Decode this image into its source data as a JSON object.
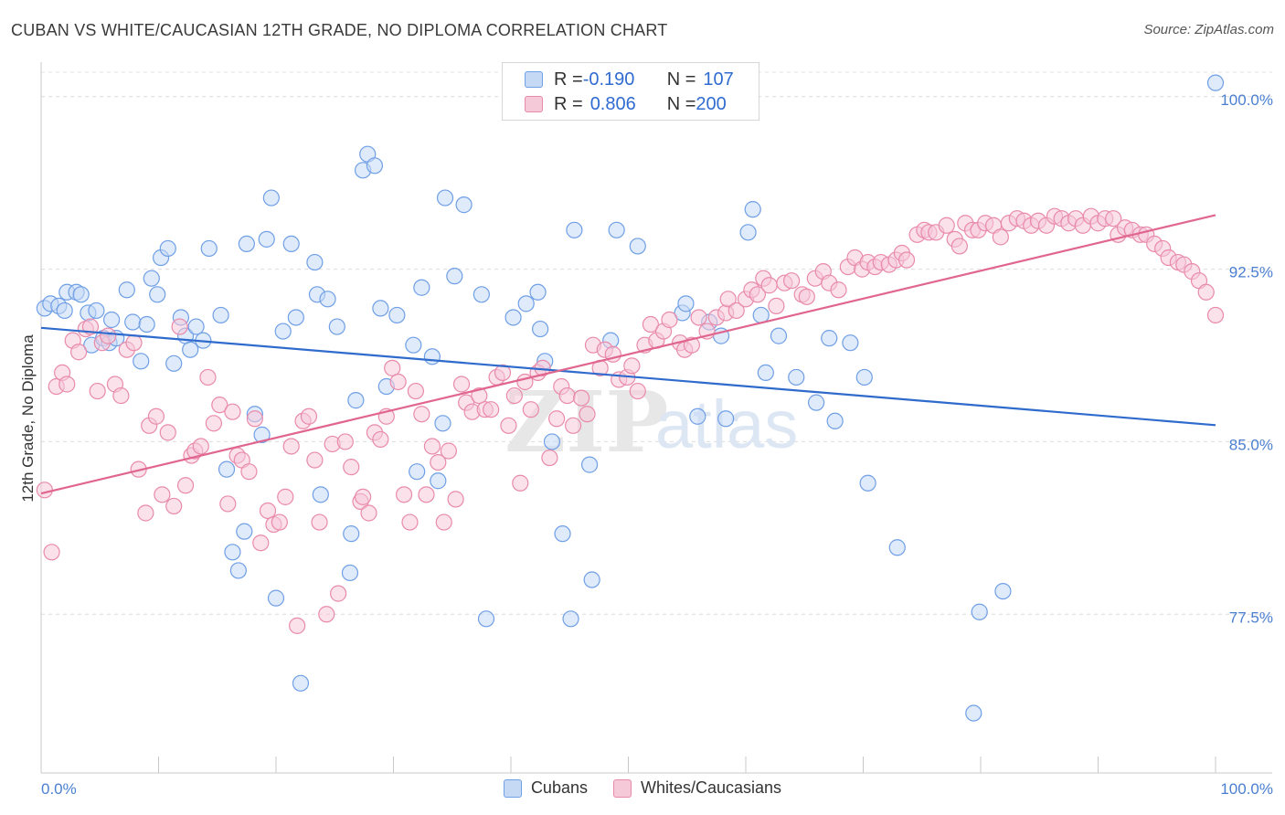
{
  "title": "CUBAN VS WHITE/CAUCASIAN 12TH GRADE, NO DIPLOMA CORRELATION CHART",
  "source": "Source: ZipAtlas.com",
  "watermark": {
    "zip": "ZIP",
    "atlas": "atlas"
  },
  "colors": {
    "blue": "#6f9fe6",
    "blue_fill": "#c5d9f5",
    "blue_line": "#2f6bcc",
    "pink": "#e98aab",
    "pink_fill": "#f6c9d8",
    "pink_line": "#e0668f",
    "tick": "#4a7fd1"
  },
  "legend": {
    "rows": [
      {
        "r_label": "R = ",
        "r_value": "-0.190",
        "n_label": "N = ",
        "n_value": "107"
      },
      {
        "r_label": "R = ",
        "r_value": "0.806",
        "n_label": "N = ",
        "n_value": "200"
      }
    ]
  },
  "bottom_legend": [
    "Cubans",
    "Whites/Caucasians"
  ],
  "chart_data": {
    "type": "scatter",
    "title": "CUBAN VS WHITE/CAUCASIAN 12TH GRADE, NO DIPLOMA CORRELATION CHART",
    "xlabel": "",
    "ylabel": "12th Grade, No Diploma",
    "xlim": [
      0,
      100
    ],
    "ylim": [
      70.6,
      101.5
    ],
    "x_tick_labels": [
      "0.0%",
      "100.0%"
    ],
    "y_ticks": [
      77.5,
      85.0,
      92.5,
      100.0
    ],
    "y_tick_labels": [
      "77.5%",
      "85.0%",
      "92.5%",
      "100.0%"
    ],
    "grid": true,
    "series": [
      {
        "name": "Cubans",
        "r": -0.19,
        "n": 107,
        "trend": {
          "x": [
            0,
            100
          ],
          "y": [
            89.95,
            85.72
          ]
        },
        "points": [
          [
            0.3,
            90.8
          ],
          [
            0.8,
            91.0
          ],
          [
            1.5,
            90.9
          ],
          [
            2.0,
            90.7
          ],
          [
            2.2,
            91.5
          ],
          [
            3.0,
            91.5
          ],
          [
            3.4,
            91.4
          ],
          [
            4.0,
            90.6
          ],
          [
            4.3,
            89.2
          ],
          [
            4.7,
            90.7
          ],
          [
            5.3,
            89.5
          ],
          [
            5.8,
            89.3
          ],
          [
            6.0,
            90.3
          ],
          [
            6.4,
            89.5
          ],
          [
            7.3,
            91.6
          ],
          [
            7.8,
            90.2
          ],
          [
            8.5,
            88.5
          ],
          [
            9.0,
            90.1
          ],
          [
            9.4,
            92.1
          ],
          [
            9.9,
            91.4
          ],
          [
            10.2,
            93.0
          ],
          [
            10.8,
            93.4
          ],
          [
            11.3,
            88.4
          ],
          [
            11.9,
            90.4
          ],
          [
            12.3,
            89.6
          ],
          [
            12.7,
            89.0
          ],
          [
            13.2,
            90.0
          ],
          [
            13.8,
            89.4
          ],
          [
            14.3,
            93.4
          ],
          [
            15.3,
            90.5
          ],
          [
            15.8,
            83.8
          ],
          [
            16.3,
            80.2
          ],
          [
            16.8,
            79.4
          ],
          [
            17.3,
            81.1
          ],
          [
            17.5,
            93.6
          ],
          [
            18.2,
            86.2
          ],
          [
            18.8,
            85.3
          ],
          [
            19.2,
            93.8
          ],
          [
            19.6,
            95.6
          ],
          [
            20.0,
            78.2
          ],
          [
            20.6,
            89.8
          ],
          [
            21.3,
            93.6
          ],
          [
            21.7,
            90.4
          ],
          [
            22.1,
            74.5
          ],
          [
            23.3,
            92.8
          ],
          [
            23.5,
            91.4
          ],
          [
            23.8,
            82.7
          ],
          [
            24.4,
            91.2
          ],
          [
            25.2,
            90.0
          ],
          [
            26.3,
            79.3
          ],
          [
            26.4,
            81.0
          ],
          [
            26.8,
            86.8
          ],
          [
            27.4,
            96.8
          ],
          [
            27.8,
            97.5
          ],
          [
            28.4,
            97.0
          ],
          [
            28.9,
            90.8
          ],
          [
            29.4,
            87.4
          ],
          [
            30.3,
            90.5
          ],
          [
            31.7,
            89.2
          ],
          [
            32.0,
            83.7
          ],
          [
            32.4,
            91.7
          ],
          [
            33.3,
            88.7
          ],
          [
            33.8,
            83.3
          ],
          [
            34.2,
            85.8
          ],
          [
            34.4,
            95.6
          ],
          [
            35.2,
            92.2
          ],
          [
            36.0,
            95.3
          ],
          [
            37.5,
            91.4
          ],
          [
            37.9,
            77.3
          ],
          [
            40.2,
            90.4
          ],
          [
            41.3,
            91.0
          ],
          [
            42.3,
            91.5
          ],
          [
            42.5,
            89.9
          ],
          [
            42.9,
            88.5
          ],
          [
            43.5,
            85.0
          ],
          [
            44.4,
            81.0
          ],
          [
            45.1,
            77.3
          ],
          [
            45.4,
            94.2
          ],
          [
            46.7,
            84.0
          ],
          [
            46.9,
            79.0
          ],
          [
            48.5,
            89.4
          ],
          [
            49.0,
            94.2
          ],
          [
            50.8,
            93.5
          ],
          [
            54.6,
            90.6
          ],
          [
            54.9,
            91.0
          ],
          [
            55.9,
            86.1
          ],
          [
            56.9,
            90.2
          ],
          [
            57.9,
            89.6
          ],
          [
            58.3,
            86.0
          ],
          [
            60.2,
            94.1
          ],
          [
            60.6,
            95.1
          ],
          [
            61.3,
            90.5
          ],
          [
            61.7,
            88.0
          ],
          [
            62.8,
            89.6
          ],
          [
            64.3,
            87.8
          ],
          [
            66.0,
            86.7
          ],
          [
            67.1,
            89.5
          ],
          [
            67.6,
            85.9
          ],
          [
            68.9,
            89.3
          ],
          [
            70.1,
            87.8
          ],
          [
            70.4,
            83.2
          ],
          [
            72.9,
            80.4
          ],
          [
            79.4,
            73.2
          ],
          [
            79.9,
            77.6
          ],
          [
            81.9,
            78.5
          ],
          [
            100.0,
            100.6
          ]
        ]
      },
      {
        "name": "Whites/Caucasians",
        "r": 0.806,
        "n": 200,
        "trend": {
          "x": [
            0,
            100
          ],
          "y": [
            82.75,
            94.85
          ]
        },
        "points": [
          [
            0.3,
            82.9
          ],
          [
            0.9,
            80.2
          ],
          [
            1.3,
            87.4
          ],
          [
            1.8,
            88.0
          ],
          [
            2.2,
            87.5
          ],
          [
            2.7,
            89.4
          ],
          [
            3.2,
            88.9
          ],
          [
            3.8,
            89.9
          ],
          [
            4.2,
            90.0
          ],
          [
            4.8,
            87.2
          ],
          [
            5.2,
            89.3
          ],
          [
            5.7,
            89.6
          ],
          [
            6.3,
            87.5
          ],
          [
            6.8,
            87.0
          ],
          [
            7.3,
            89.0
          ],
          [
            7.9,
            89.3
          ],
          [
            8.3,
            83.8
          ],
          [
            8.9,
            81.9
          ],
          [
            9.2,
            85.7
          ],
          [
            9.8,
            86.1
          ],
          [
            10.3,
            82.7
          ],
          [
            10.8,
            85.4
          ],
          [
            11.3,
            82.2
          ],
          [
            11.8,
            90.0
          ],
          [
            12.3,
            83.1
          ],
          [
            12.8,
            84.4
          ],
          [
            13.1,
            84.6
          ],
          [
            13.6,
            84.8
          ],
          [
            14.2,
            87.8
          ],
          [
            14.7,
            85.8
          ],
          [
            15.2,
            86.6
          ],
          [
            15.9,
            82.3
          ],
          [
            16.3,
            86.3
          ],
          [
            16.7,
            84.4
          ],
          [
            17.1,
            84.2
          ],
          [
            17.7,
            83.7
          ],
          [
            18.2,
            86.0
          ],
          [
            18.7,
            80.6
          ],
          [
            19.3,
            82.0
          ],
          [
            19.8,
            81.4
          ],
          [
            20.3,
            81.5
          ],
          [
            20.8,
            82.6
          ],
          [
            21.3,
            84.8
          ],
          [
            21.8,
            77.0
          ],
          [
            22.3,
            85.9
          ],
          [
            22.8,
            86.1
          ],
          [
            23.3,
            84.2
          ],
          [
            23.7,
            81.5
          ],
          [
            24.3,
            77.5
          ],
          [
            24.8,
            84.9
          ],
          [
            25.3,
            78.4
          ],
          [
            25.9,
            85.0
          ],
          [
            26.4,
            83.9
          ],
          [
            27.2,
            82.4
          ],
          [
            27.4,
            82.6
          ],
          [
            27.9,
            81.9
          ],
          [
            28.4,
            85.4
          ],
          [
            28.9,
            85.1
          ],
          [
            29.4,
            86.1
          ],
          [
            29.9,
            88.2
          ],
          [
            30.4,
            87.6
          ],
          [
            30.9,
            82.7
          ],
          [
            31.4,
            81.5
          ],
          [
            31.9,
            87.2
          ],
          [
            32.4,
            86.2
          ],
          [
            32.8,
            82.7
          ],
          [
            33.3,
            84.8
          ],
          [
            33.8,
            84.1
          ],
          [
            34.3,
            81.5
          ],
          [
            34.7,
            84.6
          ],
          [
            35.3,
            82.5
          ],
          [
            35.8,
            87.5
          ],
          [
            36.2,
            86.7
          ],
          [
            36.7,
            86.3
          ],
          [
            37.3,
            87.0
          ],
          [
            37.8,
            86.4
          ],
          [
            38.3,
            86.4
          ],
          [
            38.8,
            87.8
          ],
          [
            39.3,
            88.0
          ],
          [
            39.8,
            85.7
          ],
          [
            40.3,
            87.0
          ],
          [
            40.8,
            83.2
          ],
          [
            41.2,
            87.6
          ],
          [
            41.7,
            86.4
          ],
          [
            42.3,
            88.0
          ],
          [
            42.7,
            88.2
          ],
          [
            43.3,
            84.3
          ],
          [
            43.9,
            86.0
          ],
          [
            44.3,
            87.4
          ],
          [
            44.8,
            87.0
          ],
          [
            45.3,
            85.7
          ],
          [
            46.0,
            86.9
          ],
          [
            46.5,
            86.2
          ],
          [
            47.0,
            89.2
          ],
          [
            47.6,
            88.2
          ],
          [
            48.0,
            89.0
          ],
          [
            48.7,
            88.8
          ],
          [
            49.2,
            87.7
          ],
          [
            49.9,
            87.8
          ],
          [
            50.3,
            88.3
          ],
          [
            50.8,
            87.2
          ],
          [
            51.4,
            89.2
          ],
          [
            51.9,
            90.1
          ],
          [
            52.4,
            89.4
          ],
          [
            53.0,
            89.8
          ],
          [
            53.5,
            90.3
          ],
          [
            54.4,
            89.3
          ],
          [
            54.8,
            89.0
          ],
          [
            55.4,
            89.2
          ],
          [
            56.0,
            90.4
          ],
          [
            56.7,
            89.8
          ],
          [
            57.5,
            90.4
          ],
          [
            58.3,
            90.6
          ],
          [
            58.5,
            91.2
          ],
          [
            59.2,
            90.7
          ],
          [
            60.0,
            91.2
          ],
          [
            60.5,
            91.6
          ],
          [
            61.0,
            91.4
          ],
          [
            61.5,
            92.1
          ],
          [
            62.0,
            91.8
          ],
          [
            62.6,
            90.9
          ],
          [
            63.3,
            91.9
          ],
          [
            63.9,
            92.0
          ],
          [
            64.8,
            91.4
          ],
          [
            65.2,
            91.3
          ],
          [
            65.9,
            92.1
          ],
          [
            66.6,
            92.4
          ],
          [
            67.1,
            91.9
          ],
          [
            67.9,
            91.6
          ],
          [
            68.7,
            92.6
          ],
          [
            69.3,
            93.0
          ],
          [
            69.9,
            92.5
          ],
          [
            70.4,
            92.8
          ],
          [
            71.0,
            92.6
          ],
          [
            71.5,
            92.8
          ],
          [
            72.2,
            92.7
          ],
          [
            72.8,
            92.9
          ],
          [
            73.3,
            93.2
          ],
          [
            73.7,
            92.9
          ],
          [
            74.6,
            94.0
          ],
          [
            75.2,
            94.2
          ],
          [
            75.6,
            94.1
          ],
          [
            76.2,
            94.1
          ],
          [
            77.1,
            94.4
          ],
          [
            77.8,
            93.8
          ],
          [
            78.2,
            93.5
          ],
          [
            78.7,
            94.5
          ],
          [
            79.3,
            94.2
          ],
          [
            79.8,
            94.2
          ],
          [
            80.4,
            94.5
          ],
          [
            81.1,
            94.4
          ],
          [
            81.7,
            93.9
          ],
          [
            82.4,
            94.5
          ],
          [
            83.1,
            94.7
          ],
          [
            83.7,
            94.6
          ],
          [
            84.3,
            94.4
          ],
          [
            84.9,
            94.6
          ],
          [
            85.6,
            94.4
          ],
          [
            86.3,
            94.8
          ],
          [
            86.9,
            94.7
          ],
          [
            87.5,
            94.5
          ],
          [
            88.1,
            94.7
          ],
          [
            88.7,
            94.4
          ],
          [
            89.4,
            94.8
          ],
          [
            90.0,
            94.5
          ],
          [
            90.6,
            94.7
          ],
          [
            91.3,
            94.7
          ],
          [
            91.7,
            94.0
          ],
          [
            92.3,
            94.3
          ],
          [
            92.9,
            94.2
          ],
          [
            93.6,
            94.0
          ],
          [
            94.1,
            94.0
          ],
          [
            94.8,
            93.6
          ],
          [
            95.5,
            93.4
          ],
          [
            96.0,
            93.0
          ],
          [
            96.8,
            92.8
          ],
          [
            97.3,
            92.7
          ],
          [
            98.0,
            92.4
          ],
          [
            98.6,
            92.0
          ],
          [
            99.2,
            91.5
          ],
          [
            100.0,
            90.5
          ]
        ]
      }
    ]
  }
}
